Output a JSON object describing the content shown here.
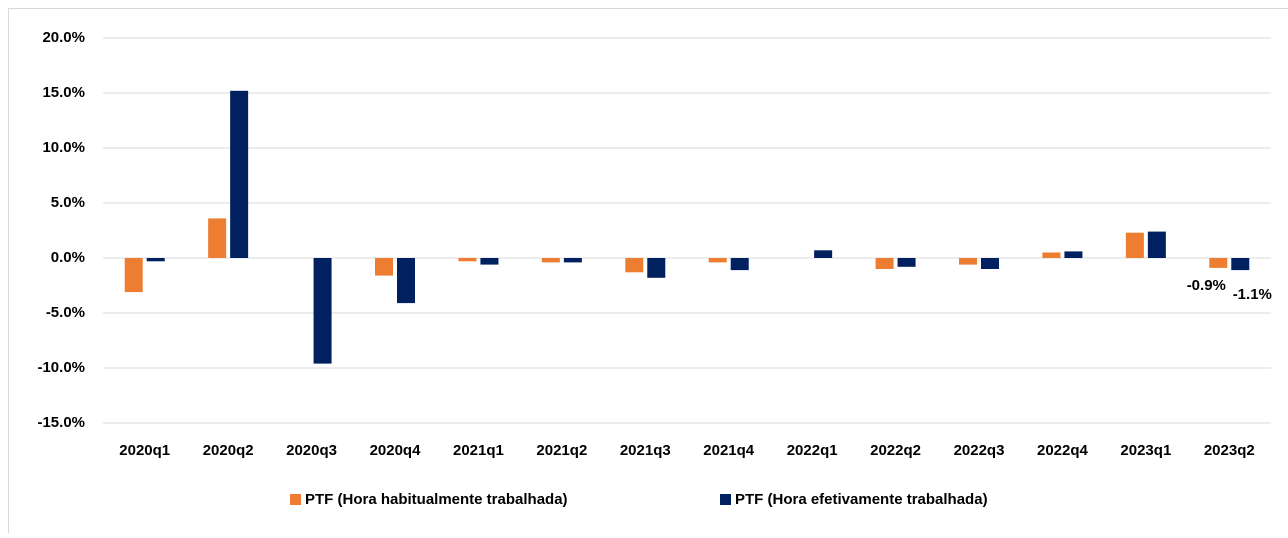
{
  "chart_data": {
    "type": "bar",
    "categories": [
      "2020q1",
      "2020q2",
      "2020q3",
      "2020q4",
      "2021q1",
      "2021q2",
      "2021q3",
      "2021q4",
      "2022q1",
      "2022q2",
      "2022q3",
      "2022q4",
      "2023q1",
      "2023q2"
    ],
    "series": [
      {
        "name": "PTF (Hora habitualmente trabalhada)",
        "color": "#ED7D31",
        "values": [
          -3.1,
          3.6,
          0,
          -1.6,
          -0.3,
          -0.4,
          -1.3,
          -0.4,
          0,
          -1.0,
          -0.6,
          0.5,
          2.3,
          -0.9
        ],
        "value_labels": [
          null,
          null,
          null,
          null,
          null,
          null,
          null,
          null,
          null,
          null,
          null,
          null,
          null,
          "-0.9%"
        ]
      },
      {
        "name": "PTF (Hora efetivamente trabalhada)",
        "color": "#002060",
        "values": [
          -0.3,
          15.2,
          -9.6,
          -4.1,
          -0.6,
          -0.4,
          -1.8,
          -1.1,
          0.7,
          -0.8,
          -1.0,
          0.6,
          2.4,
          -1.1
        ],
        "value_labels": [
          null,
          null,
          null,
          null,
          null,
          null,
          null,
          null,
          null,
          null,
          null,
          null,
          null,
          "-1.1%"
        ]
      }
    ],
    "ylim": [
      -15,
      20
    ],
    "yticks": [
      {
        "value": -15,
        "label": "-15.0%"
      },
      {
        "value": -10,
        "label": "-10.0%"
      },
      {
        "value": -5,
        "label": "-5.0%"
      },
      {
        "value": 0,
        "label": "0.0%"
      },
      {
        "value": 5,
        "label": "5.0%"
      },
      {
        "value": 10,
        "label": "10.0%"
      },
      {
        "value": 15,
        "label": "15.0%"
      },
      {
        "value": 20,
        "label": "20.0%"
      }
    ],
    "grid": true,
    "legend": "bottom"
  }
}
